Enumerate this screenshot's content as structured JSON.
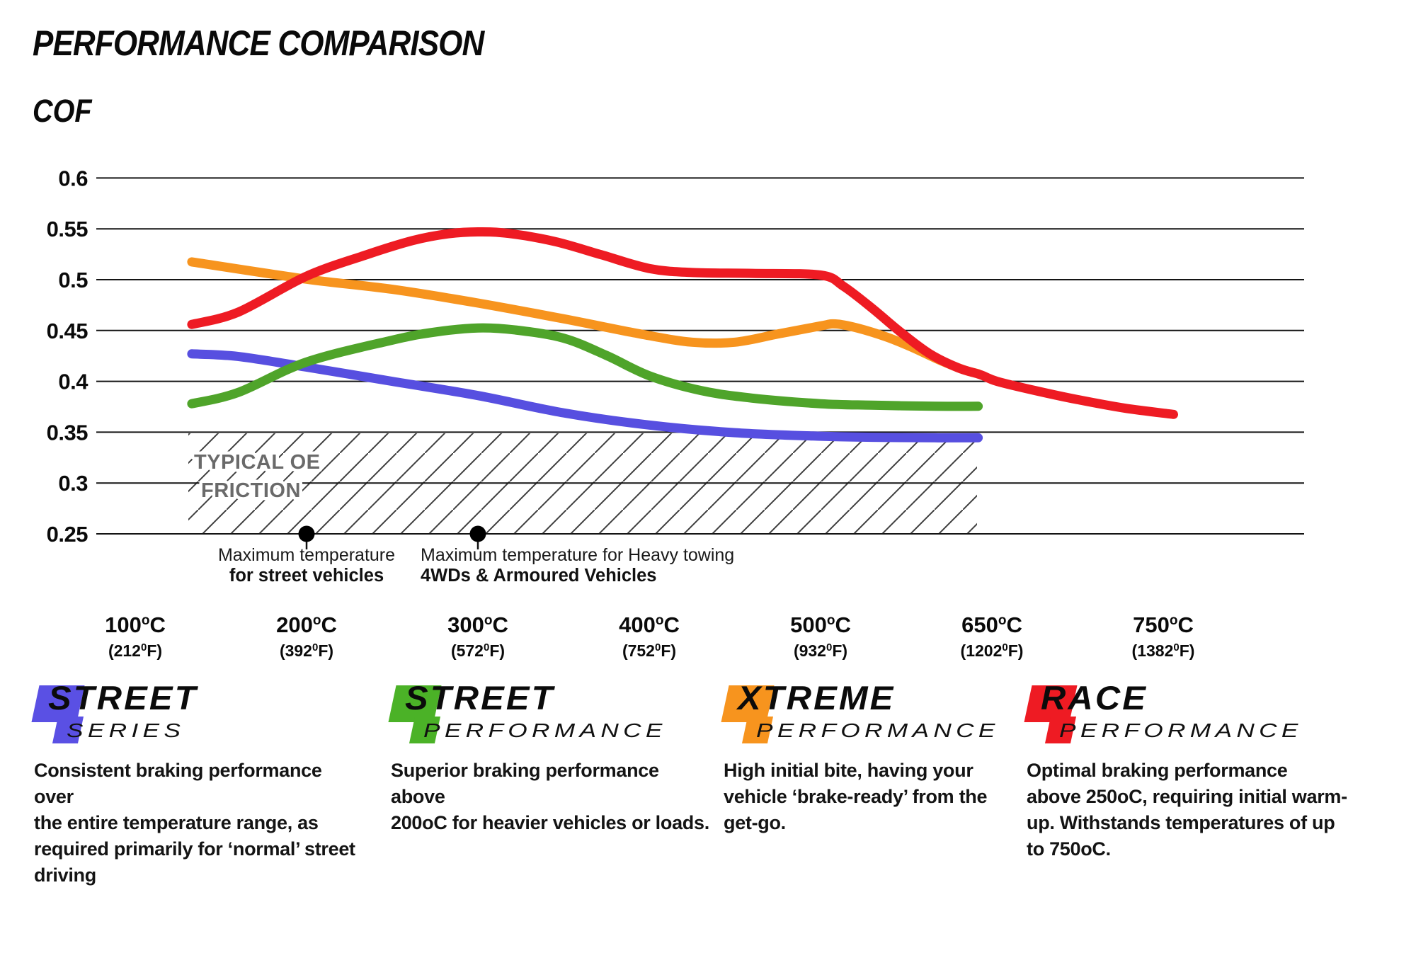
{
  "header": {
    "title": "PERFORMANCE COMPARISON",
    "ylabel": "COF"
  },
  "chart_data": {
    "type": "line",
    "title": "PERFORMANCE COMPARISON",
    "ylabel": "COF",
    "xlabel": "",
    "grid": "horizontal",
    "ylim": [
      0.25,
      0.6
    ],
    "y_tick_values": [
      0.6,
      0.55,
      0.5,
      0.45,
      0.4,
      0.35,
      0.3,
      0.25
    ],
    "y_tick_labels": [
      "0.6",
      "0.55",
      "0.5",
      "0.45",
      "0.4",
      "0.35",
      "0.3",
      "0.25"
    ],
    "x_ticks": [
      {
        "c": "100",
        "f": "212"
      },
      {
        "c": "200",
        "f": "392"
      },
      {
        "c": "300",
        "f": "572"
      },
      {
        "c": "400",
        "f": "752"
      },
      {
        "c": "500",
        "f": "932"
      },
      {
        "c": "650",
        "f": "1202"
      },
      {
        "c": "750",
        "f": "1382"
      }
    ],
    "deg_c_sup": "o",
    "deg_f_sup": "0",
    "unit_c": "C",
    "unit_f": "F",
    "series": [
      {
        "name": "Xtreme Performance",
        "color": "#F7941E",
        "points": [
          [
            133,
            0.5175
          ],
          [
            200,
            0.5005
          ],
          [
            250,
            0.4905
          ],
          [
            300,
            0.477
          ],
          [
            350,
            0.4615
          ],
          [
            395,
            0.4465
          ],
          [
            425,
            0.4385
          ],
          [
            450,
            0.4385
          ],
          [
            475,
            0.4465
          ],
          [
            500,
            0.4545
          ],
          [
            513,
            0.4565
          ],
          [
            532,
            0.4525
          ],
          [
            558,
            0.4435
          ],
          [
            580,
            0.4335
          ],
          [
            605,
            0.4205
          ],
          [
            625,
            0.4115
          ],
          [
            638,
            0.4075
          ]
        ]
      },
      {
        "name": "Street Series",
        "color": "#574FE0",
        "points": [
          [
            133,
            0.427
          ],
          [
            160,
            0.4245
          ],
          [
            200,
            0.414
          ],
          [
            250,
            0.4
          ],
          [
            300,
            0.386
          ],
          [
            350,
            0.369
          ],
          [
            400,
            0.357
          ],
          [
            450,
            0.3495
          ],
          [
            500,
            0.346
          ],
          [
            545,
            0.345
          ],
          [
            600,
            0.3445
          ],
          [
            638,
            0.3445
          ]
        ]
      },
      {
        "name": "Street Performance",
        "color": "#4FA42A",
        "points": [
          [
            133,
            0.378
          ],
          [
            160,
            0.389
          ],
          [
            200,
            0.419
          ],
          [
            250,
            0.4405
          ],
          [
            275,
            0.4485
          ],
          [
            300,
            0.4525
          ],
          [
            322,
            0.4505
          ],
          [
            350,
            0.4425
          ],
          [
            375,
            0.4255
          ],
          [
            400,
            0.4055
          ],
          [
            430,
            0.391
          ],
          [
            460,
            0.3835
          ],
          [
            500,
            0.378
          ],
          [
            545,
            0.3765
          ],
          [
            600,
            0.3755
          ],
          [
            638,
            0.3755
          ]
        ]
      },
      {
        "name": "Race Performance",
        "color": "#EE1B23",
        "points": [
          [
            133,
            0.456
          ],
          [
            160,
            0.468
          ],
          [
            200,
            0.5035
          ],
          [
            235,
            0.5245
          ],
          [
            262,
            0.5385
          ],
          [
            283,
            0.5452
          ],
          [
            300,
            0.547
          ],
          [
            318,
            0.5455
          ],
          [
            345,
            0.5375
          ],
          [
            372,
            0.5245
          ],
          [
            400,
            0.511
          ],
          [
            425,
            0.507
          ],
          [
            460,
            0.5062
          ],
          [
            500,
            0.5045
          ],
          [
            520,
            0.4935
          ],
          [
            545,
            0.472
          ],
          [
            570,
            0.4485
          ],
          [
            595,
            0.4275
          ],
          [
            620,
            0.4135
          ],
          [
            640,
            0.4065
          ],
          [
            653,
            0.4
          ],
          [
            675,
            0.391
          ],
          [
            700,
            0.382
          ],
          [
            728,
            0.3735
          ],
          [
            756,
            0.3675
          ]
        ]
      }
    ],
    "oe_band": {
      "label_line1": "TYPICAL OE",
      "label_line2": "FRICTION",
      "label_color": "#6A6A6A",
      "cof_range": [
        0.25,
        0.35
      ],
      "temp_range_c": [
        135,
        640
      ]
    },
    "markers": [
      {
        "temp_c": 200,
        "line1": "Maximum temperature",
        "line2": "for street vehicles",
        "align": "center"
      },
      {
        "temp_c": 300,
        "line1": "Maximum temperature for Heavy towing",
        "line2": "4WDs & Armoured Vehicles",
        "align": "left"
      }
    ]
  },
  "legend": {
    "items": [
      {
        "big": "STREET",
        "light": "SERIES",
        "color": "#5A50E4",
        "desc": "Consistent braking performance over\nthe entire temperature range, as\nrequired primarily for ‘normal’ street\ndriving"
      },
      {
        "big": "STREET",
        "light": "PERFORMANCE",
        "color": "#4BB227",
        "desc": "Superior braking performance above\n200oC for heavier vehicles or loads."
      },
      {
        "big": "XTREME",
        "light": "PERFORMANCE",
        "color": "#F7941E",
        "desc": "High initial bite, having your\nvehicle ‘brake-ready’ from the\nget-go."
      },
      {
        "big": "RACE",
        "light": "PERFORMANCE",
        "color": "#EE1B23",
        "desc": "Optimal braking performance\nabove 250oC, requiring initial warm-\nup. Withstands temperatures of up\nto 750oC."
      }
    ]
  }
}
